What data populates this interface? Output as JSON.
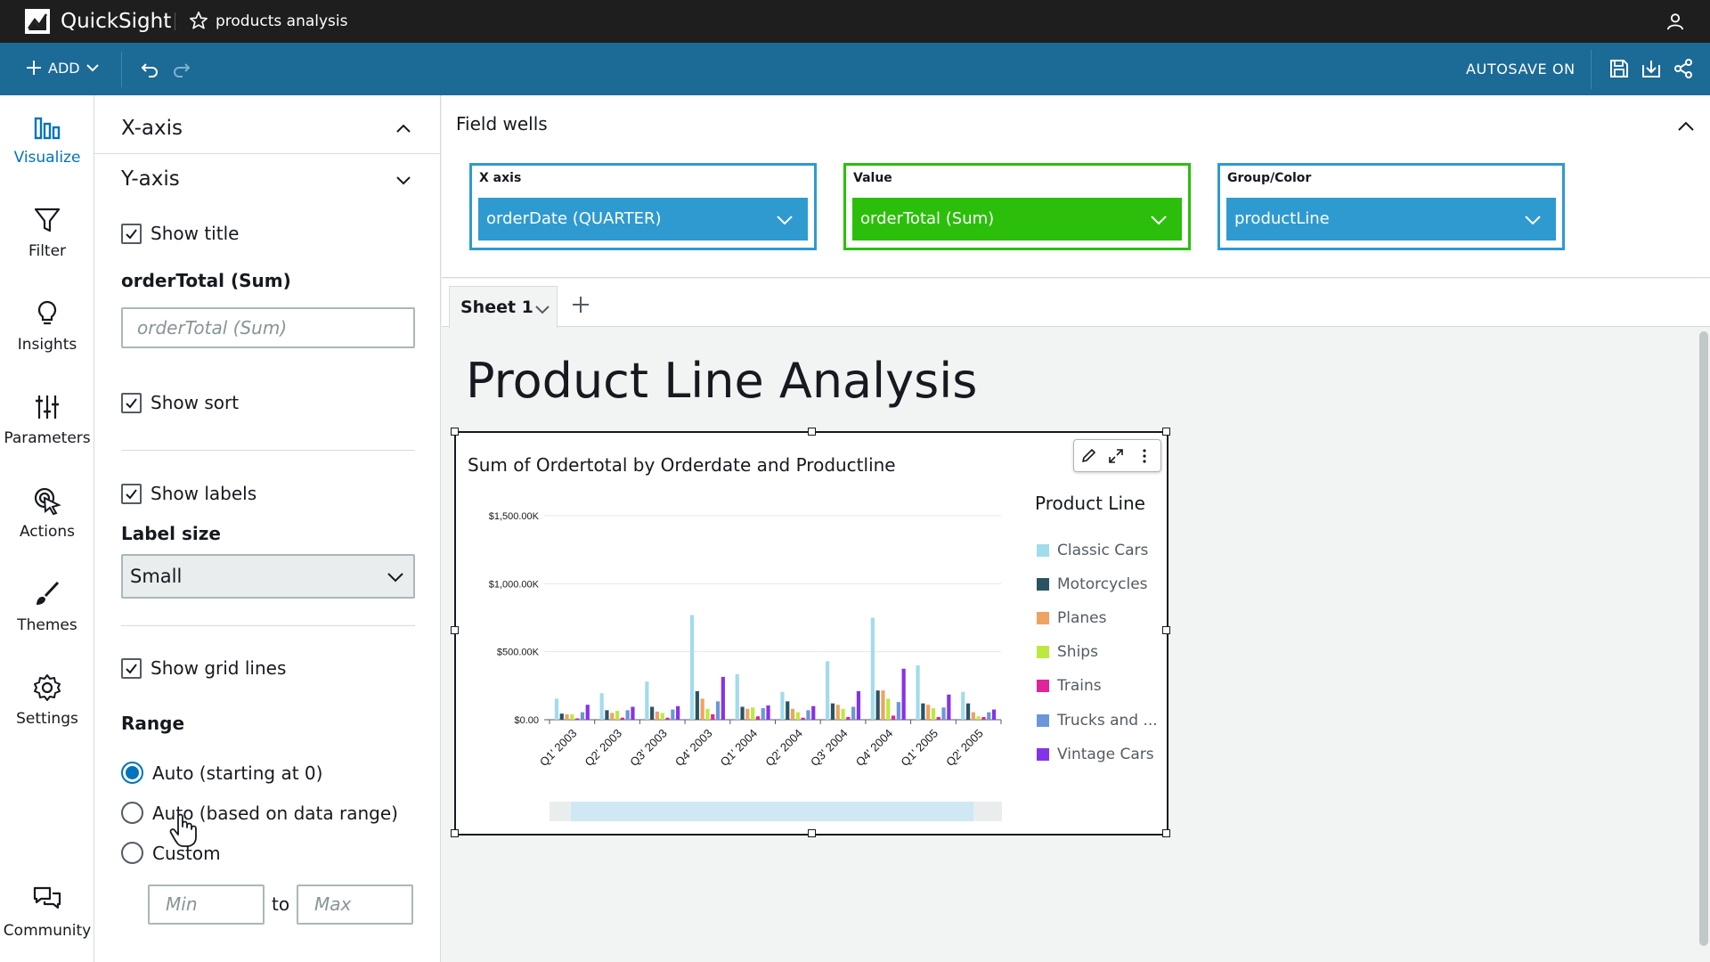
{
  "topbar": {
    "app_name": "QuickSight",
    "analysis_name": "products analysis"
  },
  "toolbar": {
    "add_label": "ADD",
    "autosave_label": "AUTOSAVE ON"
  },
  "leftnav": {
    "items": [
      {
        "label": "Visualize"
      },
      {
        "label": "Filter"
      },
      {
        "label": "Insights"
      },
      {
        "label": "Parameters"
      },
      {
        "label": "Actions"
      },
      {
        "label": "Themes"
      },
      {
        "label": "Settings"
      },
      {
        "label": "Community"
      }
    ]
  },
  "panel": {
    "xaxis_label": "X-axis",
    "yaxis_label": "Y-axis",
    "show_title": "Show title",
    "axis_title_heading": "orderTotal (Sum)",
    "axis_title_placeholder": "orderTotal (Sum)",
    "show_sort": "Show sort",
    "show_labels": "Show labels",
    "label_size_heading": "Label size",
    "label_size_value": "Small",
    "show_grid": "Show grid lines",
    "range_heading": "Range",
    "range_options": [
      "Auto (starting at 0)",
      "Auto (based on data range)",
      "Custom"
    ],
    "range_min_placeholder": "Min",
    "range_to": "to",
    "range_max_placeholder": "Max"
  },
  "fieldwells": {
    "title": "Field wells",
    "xaxis": {
      "label": "X axis",
      "value": "orderDate (QUARTER)",
      "color": "#2e9ad0"
    },
    "value": {
      "label": "Value",
      "value": "orderTotal (Sum)",
      "color": "#2bbf0b"
    },
    "group": {
      "label": "Group/Color",
      "value": "productLine",
      "color": "#2e9ad0"
    }
  },
  "sheet": {
    "tab_label": "Sheet 1",
    "title": "Product Line Analysis"
  },
  "visual": {
    "legend_title": "Product Line",
    "legend": [
      {
        "name": "Classic Cars",
        "color": "#a2dbec"
      },
      {
        "name": "Motorcycles",
        "color": "#2b5263"
      },
      {
        "name": "Planes",
        "color": "#eda362"
      },
      {
        "name": "Ships",
        "color": "#bde93f"
      },
      {
        "name": "Trains",
        "color": "#e0249b"
      },
      {
        "name": "Trucks and ...",
        "color": "#6b97d9"
      },
      {
        "name": "Vintage Cars",
        "color": "#8533e8"
      }
    ]
  },
  "chart_data": {
    "type": "bar",
    "title": "Sum of Ordertotal by Orderdate and Productline",
    "xlabel": "",
    "ylabel": "",
    "ylim": [
      0,
      1500000
    ],
    "yticks": [
      "$0.00",
      "$500.00K",
      "$1,000.00K",
      "$1,500.00K"
    ],
    "ytick_values": [
      0,
      500000,
      1000000,
      1500000
    ],
    "grid": true,
    "legend_position": "right",
    "categories": [
      "Q1' 2003",
      "Q2' 2003",
      "Q3' 2003",
      "Q4' 2003",
      "Q1' 2004",
      "Q2' 2004",
      "Q3' 2004",
      "Q4' 2004",
      "Q1' 2005",
      "Q2' 2005"
    ],
    "series": [
      {
        "name": "Classic Cars",
        "values": [
          155000,
          195000,
          280000,
          770000,
          335000,
          205000,
          430000,
          750000,
          400000,
          205000
        ]
      },
      {
        "name": "Motorcycles",
        "values": [
          45000,
          70000,
          95000,
          210000,
          95000,
          135000,
          120000,
          215000,
          120000,
          120000
        ]
      },
      {
        "name": "Planes",
        "values": [
          40000,
          50000,
          60000,
          155000,
          80000,
          80000,
          110000,
          215000,
          110000,
          55000
        ]
      },
      {
        "name": "Ships",
        "values": [
          40000,
          65000,
          50000,
          80000,
          90000,
          55000,
          80000,
          155000,
          85000,
          25000
        ]
      },
      {
        "name": "Trains",
        "values": [
          10000,
          15000,
          15000,
          40000,
          25000,
          15000,
          20000,
          30000,
          20000,
          20000
        ]
      },
      {
        "name": "Trucks and ...",
        "values": [
          55000,
          70000,
          75000,
          135000,
          85000,
          70000,
          95000,
          130000,
          90000,
          55000
        ]
      },
      {
        "name": "Vintage Cars",
        "values": [
          110000,
          95000,
          100000,
          315000,
          105000,
          100000,
          210000,
          375000,
          185000,
          75000
        ]
      }
    ]
  }
}
